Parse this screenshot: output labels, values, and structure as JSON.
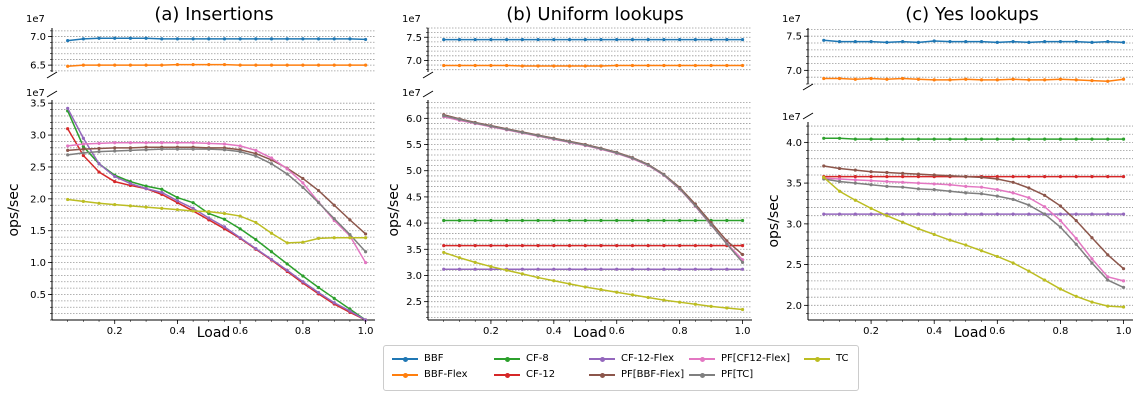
{
  "chart_data": [
    {
      "type": "line",
      "title": "(a) Insertions",
      "xlabel": "Load",
      "ylabel": "ops/sec",
      "x": [
        0.05,
        0.1,
        0.15,
        0.2,
        0.25,
        0.3,
        0.35,
        0.4,
        0.45,
        0.5,
        0.55,
        0.6,
        0.65,
        0.7,
        0.75,
        0.8,
        0.85,
        0.9,
        0.95,
        1.0
      ],
      "xlim": [
        0.0,
        1.03
      ],
      "xticks": [
        "0.2",
        "0.4",
        "0.6",
        "0.8",
        "1.0"
      ],
      "top_axis": {
        "multiplier": "1e7",
        "ylim": [
          63800000.0,
          71500000.0
        ],
        "ticks": [
          "6.5",
          "7.0"
        ]
      },
      "bottom_axis": {
        "multiplier": "1e7",
        "ylim": [
          1000000.0,
          35500000.0
        ],
        "ticks": [
          "0.5",
          "1.0",
          "1.5",
          "2.0",
          "2.5",
          "3.0",
          "3.5"
        ]
      },
      "series": [
        {
          "name": "BBF",
          "color": "#1f77b4",
          "values": [
            69300000.0,
            69600000.0,
            69700000.0,
            69700000.0,
            69700000.0,
            69700000.0,
            69600000.0,
            69600000.0,
            69600000.0,
            69600000.0,
            69600000.0,
            69600000.0,
            69600000.0,
            69600000.0,
            69600000.0,
            69600000.0,
            69600000.0,
            69600000.0,
            69600000.0,
            69500000.0
          ]
        },
        {
          "name": "BBF-Flex",
          "color": "#ff7f0e",
          "values": [
            64800000.0,
            65000000.0,
            65000000.0,
            65000000.0,
            65000000.0,
            65000000.0,
            65000000.0,
            65100000.0,
            65100000.0,
            65100000.0,
            65100000.0,
            65000000.0,
            65000000.0,
            65000000.0,
            65000000.0,
            65000000.0,
            65000000.0,
            65000000.0,
            65000000.0,
            65000000.0
          ]
        },
        {
          "name": "CF-8",
          "color": "#2ca02c",
          "values": [
            33800000.0,
            28200000.0,
            25500000.0,
            23700000.0,
            22700000.0,
            22000000.0,
            21500000.0,
            20200000.0,
            19400000.0,
            17700000.0,
            16800000.0,
            15300000.0,
            13600000.0,
            11700000.0,
            9800000.0,
            7900000.0,
            6100000.0,
            4400000.0,
            2700000.0,
            1000000.0
          ]
        },
        {
          "name": "CF-12",
          "color": "#d62728",
          "values": [
            31000000.0,
            26800000.0,
            24200000.0,
            22700000.0,
            22100000.0,
            21600000.0,
            20700000.0,
            19400000.0,
            18100000.0,
            16700000.0,
            15300000.0,
            13800000.0,
            12100000.0,
            10400000.0,
            8600000.0,
            6800000.0,
            5100000.0,
            3500000.0,
            2200000.0,
            1000000.0
          ]
        },
        {
          "name": "CF-12-Flex",
          "color": "#9467bd",
          "values": [
            34200000.0,
            29500000.0,
            25500000.0,
            23500000.0,
            22400000.0,
            21600000.0,
            21000000.0,
            19700000.0,
            18500000.0,
            17000000.0,
            15600000.0,
            13900000.0,
            12200000.0,
            10500000.0,
            8800000.0,
            7000000.0,
            5300000.0,
            3700000.0,
            2400000.0,
            1000000.0
          ]
        },
        {
          "name": "PF[BBF-Flex]",
          "color": "#8c564b",
          "values": [
            27600000.0,
            27800000.0,
            27900000.0,
            28000000.0,
            28000000.0,
            28100000.0,
            28100000.0,
            28100000.0,
            28100000.0,
            28000000.0,
            28000000.0,
            27700000.0,
            27100000.0,
            26100000.0,
            24800000.0,
            23200000.0,
            21300000.0,
            19000000.0,
            16700000.0,
            14500000.0
          ]
        },
        {
          "name": "PF[CF12-Flex]",
          "color": "#e377c2",
          "values": [
            28300000.0,
            28600000.0,
            28700000.0,
            28800000.0,
            28800000.0,
            28800000.0,
            28800000.0,
            28800000.0,
            28800000.0,
            28700000.0,
            28600000.0,
            28300000.0,
            27600000.0,
            26400000.0,
            24700000.0,
            22500000.0,
            19500000.0,
            16600000.0,
            14200000.0,
            10000000.0
          ]
        },
        {
          "name": "PF[TC]",
          "color": "#7f7f7f",
          "values": [
            26900000.0,
            27200000.0,
            27400000.0,
            27500000.0,
            27600000.0,
            27700000.0,
            27800000.0,
            27800000.0,
            27800000.0,
            27800000.0,
            27700000.0,
            27400000.0,
            26700000.0,
            25500000.0,
            23900000.0,
            21800000.0,
            19400000.0,
            16900000.0,
            14400000.0,
            11700000.0
          ]
        },
        {
          "name": "TC",
          "color": "#bcbd22",
          "values": [
            19900000.0,
            19600000.0,
            19300000.0,
            19100000.0,
            18900000.0,
            18700000.0,
            18500000.0,
            18300000.0,
            18100000.0,
            18000000.0,
            17700000.0,
            17300000.0,
            16300000.0,
            14600000.0,
            13100000.0,
            13200000.0,
            13800000.0,
            13900000.0,
            13900000.0,
            13900000.0
          ]
        }
      ]
    },
    {
      "type": "line",
      "title": "(b) Uniform lookups",
      "xlabel": "Load",
      "ylabel": "ops/sec",
      "x": [
        0.05,
        0.1,
        0.15,
        0.2,
        0.25,
        0.3,
        0.35,
        0.4,
        0.45,
        0.5,
        0.55,
        0.6,
        0.65,
        0.7,
        0.75,
        0.8,
        0.85,
        0.9,
        0.95,
        1.0
      ],
      "xlim": [
        0.0,
        1.03
      ],
      "xticks": [
        "0.2",
        "0.4",
        "0.6",
        "0.8",
        "1.0"
      ],
      "top_axis": {
        "multiplier": "1e7",
        "ylim": [
          67500000.0,
          77000000.0
        ],
        "ticks": [
          "7.0",
          "7.5"
        ]
      },
      "bottom_axis": {
        "multiplier": "1e7",
        "ylim": [
          21500000.0,
          63500000.0
        ],
        "ticks": [
          "2.5",
          "3.0",
          "3.5",
          "4.0",
          "4.5",
          "5.0",
          "5.5",
          "6.0"
        ]
      },
      "series": [
        {
          "name": "BBF",
          "color": "#1f77b4",
          "values": [
            74500000.0,
            74500000.0,
            74500000.0,
            74500000.0,
            74500000.0,
            74500000.0,
            74500000.0,
            74500000.0,
            74500000.0,
            74500000.0,
            74500000.0,
            74500000.0,
            74500000.0,
            74500000.0,
            74500000.0,
            74500000.0,
            74500000.0,
            74500000.0,
            74500000.0,
            74500000.0
          ]
        },
        {
          "name": "BBF-Flex",
          "color": "#ff7f0e",
          "values": [
            68900000.0,
            68900000.0,
            68900000.0,
            68900000.0,
            68900000.0,
            68800000.0,
            68800000.0,
            68800000.0,
            68800000.0,
            68800000.0,
            68800000.0,
            68900000.0,
            68900000.0,
            68900000.0,
            68900000.0,
            68900000.0,
            68900000.0,
            68900000.0,
            68900000.0,
            68900000.0
          ]
        },
        {
          "name": "CF-8",
          "color": "#2ca02c",
          "values": [
            40500000.0,
            40500000.0,
            40500000.0,
            40500000.0,
            40500000.0,
            40500000.0,
            40500000.0,
            40500000.0,
            40500000.0,
            40500000.0,
            40500000.0,
            40500000.0,
            40500000.0,
            40500000.0,
            40500000.0,
            40500000.0,
            40500000.0,
            40500000.0,
            40500000.0,
            40500000.0
          ]
        },
        {
          "name": "CF-12",
          "color": "#d62728",
          "values": [
            35700000.0,
            35700000.0,
            35700000.0,
            35700000.0,
            35700000.0,
            35700000.0,
            35700000.0,
            35700000.0,
            35700000.0,
            35700000.0,
            35700000.0,
            35700000.0,
            35700000.0,
            35700000.0,
            35700000.0,
            35700000.0,
            35700000.0,
            35700000.0,
            35700000.0,
            35700000.0
          ]
        },
        {
          "name": "CF-12-Flex",
          "color": "#9467bd",
          "values": [
            31200000.0,
            31200000.0,
            31200000.0,
            31200000.0,
            31200000.0,
            31200000.0,
            31200000.0,
            31200000.0,
            31200000.0,
            31200000.0,
            31200000.0,
            31200000.0,
            31200000.0,
            31200000.0,
            31200000.0,
            31200000.0,
            31200000.0,
            31200000.0,
            31200000.0,
            31200000.0
          ]
        },
        {
          "name": "PF[BBF-Flex]",
          "color": "#8c564b",
          "values": [
            60700000.0,
            59900000.0,
            59200000.0,
            58600000.0,
            58000000.0,
            57400000.0,
            56800000.0,
            56200000.0,
            55600000.0,
            55000000.0,
            54300000.0,
            53500000.0,
            52500000.0,
            51200000.0,
            49300000.0,
            46800000.0,
            43600000.0,
            40100000.0,
            36600000.0,
            34000000.0
          ]
        },
        {
          "name": "PF[CF12-Flex]",
          "color": "#e377c2",
          "values": [
            60300000.0,
            59600000.0,
            59000000.0,
            58400000.0,
            57800000.0,
            57200000.0,
            56600000.0,
            56000000.0,
            55400000.0,
            54800000.0,
            54100000.0,
            53300000.0,
            52300000.0,
            51000000.0,
            49100000.0,
            46500000.0,
            43200000.0,
            39600000.0,
            36100000.0,
            33000000.0
          ]
        },
        {
          "name": "PF[TC]",
          "color": "#7f7f7f",
          "values": [
            60500000.0,
            59800000.0,
            59100000.0,
            58500000.0,
            57900000.0,
            57300000.0,
            56700000.0,
            56100000.0,
            55500000.0,
            54900000.0,
            54200000.0,
            53400000.0,
            52400000.0,
            51100000.0,
            49200000.0,
            46600000.0,
            43300000.0,
            39700000.0,
            36000000.0,
            32500000.0
          ]
        },
        {
          "name": "TC",
          "color": "#bcbd22",
          "values": [
            34400000.0,
            33400000.0,
            32500000.0,
            31700000.0,
            31000000.0,
            30300000.0,
            29600000.0,
            29000000.0,
            28400000.0,
            27800000.0,
            27300000.0,
            26800000.0,
            26300000.0,
            25800000.0,
            25300000.0,
            24900000.0,
            24500000.0,
            24100000.0,
            23800000.0,
            23500000.0
          ]
        }
      ]
    },
    {
      "type": "line",
      "title": "(c) Yes lookups",
      "xlabel": "Load",
      "ylabel": "ops/sec",
      "x": [
        0.05,
        0.1,
        0.15,
        0.2,
        0.25,
        0.3,
        0.35,
        0.4,
        0.45,
        0.5,
        0.55,
        0.6,
        0.65,
        0.7,
        0.75,
        0.8,
        0.85,
        0.9,
        0.95,
        1.0
      ],
      "xlim": [
        0.0,
        1.03
      ],
      "xticks": [
        "0.2",
        "0.4",
        "0.6",
        "0.8",
        "1.0"
      ],
      "top_axis": {
        "multiplier": "1e7",
        "ylim": [
          68000000.0,
          76200000.0
        ],
        "ticks": [
          "7.0",
          "7.5"
        ]
      },
      "bottom_axis": {
        "multiplier": "1e7",
        "ylim": [
          18200000.0,
          42500000.0
        ],
        "ticks": [
          "2.0",
          "2.5",
          "3.0",
          "3.5",
          "4.0"
        ]
      },
      "series": [
        {
          "name": "BBF",
          "color": "#1f77b4",
          "values": [
            74400000.0,
            74200000.0,
            74200000.0,
            74200000.0,
            74100000.0,
            74200000.0,
            74100000.0,
            74300000.0,
            74200000.0,
            74200000.0,
            74200000.0,
            74100000.0,
            74200000.0,
            74100000.0,
            74200000.0,
            74200000.0,
            74200000.0,
            74100000.0,
            74200000.0,
            74100000.0
          ]
        },
        {
          "name": "BBF-Flex",
          "color": "#ff7f0e",
          "values": [
            68800000.0,
            68800000.0,
            68700000.0,
            68800000.0,
            68700000.0,
            68800000.0,
            68700000.0,
            68600000.0,
            68600000.0,
            68700000.0,
            68600000.0,
            68600000.0,
            68700000.0,
            68600000.0,
            68600000.0,
            68700000.0,
            68600000.0,
            68500000.0,
            68400000.0,
            68700000.0
          ]
        },
        {
          "name": "CF-8",
          "color": "#2ca02c",
          "values": [
            40500000.0,
            40500000.0,
            40400000.0,
            40400000.0,
            40400000.0,
            40400000.0,
            40400000.0,
            40400000.0,
            40400000.0,
            40400000.0,
            40400000.0,
            40400000.0,
            40400000.0,
            40400000.0,
            40400000.0,
            40400000.0,
            40400000.0,
            40400000.0,
            40400000.0,
            40400000.0
          ]
        },
        {
          "name": "CF-12",
          "color": "#d62728",
          "values": [
            35800000.0,
            35800000.0,
            35800000.0,
            35800000.0,
            35800000.0,
            35800000.0,
            35800000.0,
            35800000.0,
            35800000.0,
            35800000.0,
            35800000.0,
            35800000.0,
            35800000.0,
            35800000.0,
            35800000.0,
            35800000.0,
            35800000.0,
            35800000.0,
            35800000.0,
            35800000.0
          ]
        },
        {
          "name": "CF-12-Flex",
          "color": "#9467bd",
          "values": [
            31200000.0,
            31200000.0,
            31200000.0,
            31200000.0,
            31200000.0,
            31200000.0,
            31200000.0,
            31200000.0,
            31200000.0,
            31200000.0,
            31200000.0,
            31200000.0,
            31200000.0,
            31200000.0,
            31200000.0,
            31200000.0,
            31200000.0,
            31200000.0,
            31200000.0,
            31200000.0
          ]
        },
        {
          "name": "PF[BBF-Flex]",
          "color": "#8c564b",
          "values": [
            37100000.0,
            36800000.0,
            36600000.0,
            36400000.0,
            36300000.0,
            36200000.0,
            36100000.0,
            36000000.0,
            35900000.0,
            35800000.0,
            35700000.0,
            35500000.0,
            35100000.0,
            34400000.0,
            33500000.0,
            32200000.0,
            30400000.0,
            28300000.0,
            26200000.0,
            24500000.0
          ]
        },
        {
          "name": "PF[CF12-Flex]",
          "color": "#e377c2",
          "values": [
            35600000.0,
            35500000.0,
            35400000.0,
            35300000.0,
            35200000.0,
            35100000.0,
            35000000.0,
            34900000.0,
            34800000.0,
            34600000.0,
            34500000.0,
            34200000.0,
            33800000.0,
            33200000.0,
            32100000.0,
            30400000.0,
            28200000.0,
            25700000.0,
            23500000.0,
            23000000.0
          ]
        },
        {
          "name": "PF[TC]",
          "color": "#7f7f7f",
          "values": [
            35500000.0,
            35200000.0,
            35000000.0,
            34800000.0,
            34600000.0,
            34500000.0,
            34300000.0,
            34200000.0,
            34000000.0,
            33800000.0,
            33700000.0,
            33400000.0,
            33000000.0,
            32300000.0,
            31200000.0,
            29600000.0,
            27500000.0,
            25200000.0,
            23100000.0,
            22200000.0
          ]
        },
        {
          "name": "TC",
          "color": "#bcbd22",
          "values": [
            35700000.0,
            34000000.0,
            32900000.0,
            31900000.0,
            31000000.0,
            30200000.0,
            29400000.0,
            28700000.0,
            28000000.0,
            27400000.0,
            26700000.0,
            26000000.0,
            25200000.0,
            24200000.0,
            23100000.0,
            22000000.0,
            21100000.0,
            20400000.0,
            19900000.0,
            19800000.0
          ]
        }
      ]
    }
  ],
  "legend": {
    "entries": [
      {
        "name": "BBF",
        "color": "#1f77b4"
      },
      {
        "name": "BBF-Flex",
        "color": "#ff7f0e"
      },
      {
        "name": "CF-8",
        "color": "#2ca02c"
      },
      {
        "name": "CF-12",
        "color": "#d62728"
      },
      {
        "name": "CF-12-Flex",
        "color": "#9467bd"
      },
      {
        "name": "PF[BBF-Flex]",
        "color": "#8c564b"
      },
      {
        "name": "PF[CF12-Flex]",
        "color": "#e377c2"
      },
      {
        "name": "PF[TC]",
        "color": "#7f7f7f"
      },
      {
        "name": "TC",
        "color": "#bcbd22"
      }
    ],
    "placement": "bottom-center"
  }
}
